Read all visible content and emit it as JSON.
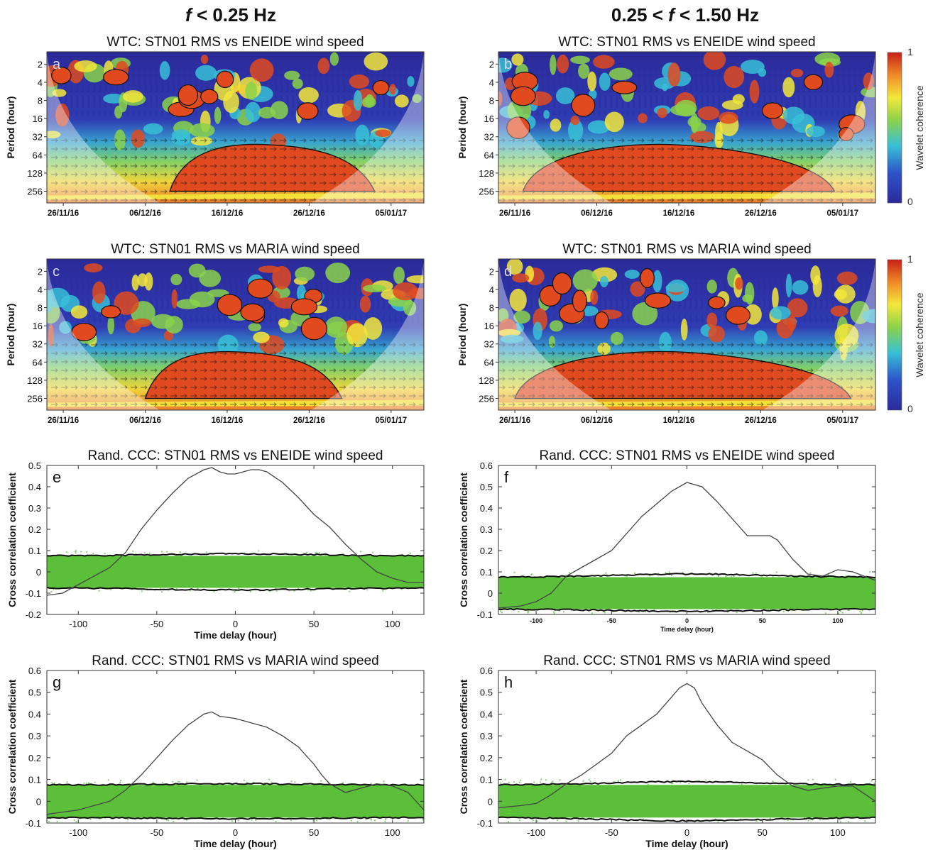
{
  "figure": {
    "column_headers": [
      {
        "italic": "f",
        "rest": " < 0.25 Hz"
      },
      {
        "pre": "0.25 < ",
        "italic": "f",
        "rest": " < 1.50 Hz"
      }
    ]
  },
  "colors": {
    "coherence_low": "#2b2a9a",
    "coherence_mid": "#37c0d6",
    "coherence_green": "#8ad24a",
    "coherence_yellow": "#f3e83a",
    "coherence_high": "#e04a1e",
    "random_band": "#5bbf3a",
    "ccc_line": "#444444"
  },
  "colorbar": {
    "label": "Wavelet coherence",
    "ticks": [
      "1",
      "0"
    ],
    "range": [
      0,
      1
    ]
  },
  "chart_data": [
    {
      "id": "a",
      "label": "a",
      "type": "heatmap",
      "title": "WTC: STN01 RMS vs ENEIDE wind speed",
      "ylabel": "Period (hour)",
      "yticks": [
        "2",
        "4",
        "8",
        "16",
        "32",
        "64",
        "128",
        "256"
      ],
      "yscale": "log2",
      "xticks": [
        "26/11/16",
        "06/12/16",
        "16/12/16",
        "26/12/16",
        "05/01/17"
      ],
      "zlabel": "Wavelet coherence",
      "zrange": [
        0,
        1
      ],
      "high_coherence_regions": [
        {
          "period_range": [
            64,
            256
          ],
          "date_range": [
            "09/12/16",
            "03/01/17"
          ],
          "coherence": 0.9
        }
      ]
    },
    {
      "id": "b",
      "label": "b",
      "type": "heatmap",
      "title": "WTC: STN01 RMS vs ENEIDE wind speed",
      "ylabel": "Period (hour)",
      "yticks": [
        "2",
        "4",
        "8",
        "16",
        "32",
        "64",
        "128",
        "256"
      ],
      "yscale": "log2",
      "xticks": [
        "26/11/16",
        "06/12/16",
        "16/12/16",
        "26/12/16",
        "05/01/17"
      ],
      "zlabel": "Wavelet coherence",
      "zrange": [
        0,
        1
      ],
      "high_coherence_regions": [
        {
          "period_range": [
            64,
            256
          ],
          "date_range": [
            "27/11/16",
            "04/01/17"
          ],
          "coherence": 0.9
        }
      ]
    },
    {
      "id": "c",
      "label": "c",
      "type": "heatmap",
      "title": "WTC: STN01 RMS vs MARIA wind speed",
      "ylabel": "Period (hour)",
      "yticks": [
        "2",
        "4",
        "8",
        "16",
        "32",
        "64",
        "128",
        "256"
      ],
      "yscale": "log2",
      "xticks": [
        "26/11/16",
        "06/12/16",
        "16/12/16",
        "26/12/16",
        "05/01/17"
      ],
      "zlabel": "Wavelet coherence",
      "zrange": [
        0,
        1
      ],
      "high_coherence_regions": [
        {
          "period_range": [
            64,
            256
          ],
          "date_range": [
            "06/12/16",
            "30/12/16"
          ],
          "coherence": 0.9
        }
      ]
    },
    {
      "id": "d",
      "label": "d",
      "type": "heatmap",
      "title": "WTC: STN01 RMS vs MARIA wind speed",
      "ylabel": "Period (hour)",
      "yticks": [
        "2",
        "4",
        "8",
        "16",
        "32",
        "64",
        "128",
        "256"
      ],
      "yscale": "log2",
      "xticks": [
        "26/11/16",
        "06/12/16",
        "16/12/16",
        "26/12/16",
        "05/01/17"
      ],
      "zlabel": "Wavelet coherence",
      "zrange": [
        0,
        1
      ],
      "high_coherence_regions": [
        {
          "period_range": [
            64,
            256
          ],
          "date_range": [
            "26/11/16",
            "06/01/17"
          ],
          "coherence": 0.9
        }
      ]
    },
    {
      "id": "e",
      "label": "e",
      "type": "line",
      "title": "Rand. CCC: STN01 RMS vs ENEIDE wind speed",
      "xlabel": "Time delay (hour)",
      "ylabel": "Cross correlation coefficient",
      "xlim": [
        -120,
        120
      ],
      "ylim": [
        -0.2,
        0.5
      ],
      "xticks": [
        -100,
        -50,
        0,
        50,
        100
      ],
      "yticks": [
        -0.2,
        -0.1,
        0,
        0.1,
        0.2,
        0.3,
        0.4,
        0.5
      ],
      "ccc": {
        "x": [
          -120,
          -110,
          -100,
          -90,
          -80,
          -70,
          -60,
          -50,
          -40,
          -30,
          -20,
          -15,
          -10,
          -5,
          0,
          5,
          10,
          15,
          20,
          30,
          40,
          50,
          60,
          70,
          80,
          90,
          100,
          110,
          120
        ],
        "y": [
          -0.11,
          -0.1,
          -0.06,
          -0.02,
          0.02,
          0.09,
          0.2,
          0.29,
          0.37,
          0.44,
          0.48,
          0.49,
          0.47,
          0.46,
          0.46,
          0.47,
          0.48,
          0.48,
          0.47,
          0.42,
          0.35,
          0.27,
          0.21,
          0.13,
          0.06,
          0.0,
          -0.03,
          -0.05,
          -0.05
        ]
      },
      "random_envelope": {
        "upper": 0.075,
        "lower": -0.075,
        "upper_peak": 0.085,
        "lower_peak": -0.085
      }
    },
    {
      "id": "f",
      "label": "f",
      "type": "line",
      "title": "Rand. CCC: STN01 RMS vs ENEIDE wind speed",
      "xlabel": "Time delay (hour)",
      "ylabel": "Cross correlation coefficient",
      "xlim": [
        -125,
        125
      ],
      "ylim": [
        -0.1,
        0.6
      ],
      "xticks": [
        -100,
        -50,
        0,
        50,
        100
      ],
      "yticks": [
        -0.1,
        0,
        0.1,
        0.2,
        0.3,
        0.4,
        0.5,
        0.6
      ],
      "ccc": {
        "x": [
          -125,
          -110,
          -100,
          -90,
          -80,
          -70,
          -60,
          -50,
          -40,
          -30,
          -20,
          -10,
          0,
          10,
          20,
          30,
          40,
          50,
          55,
          60,
          70,
          80,
          90,
          100,
          110,
          125
        ],
        "y": [
          -0.07,
          -0.06,
          -0.04,
          0.0,
          0.08,
          0.12,
          0.16,
          0.2,
          0.28,
          0.36,
          0.42,
          0.48,
          0.52,
          0.5,
          0.43,
          0.35,
          0.27,
          0.27,
          0.27,
          0.25,
          0.16,
          0.09,
          0.08,
          0.11,
          0.1,
          0.06
        ]
      },
      "random_envelope": {
        "upper": 0.075,
        "lower": -0.075,
        "upper_peak": 0.09,
        "lower_peak": -0.085
      }
    },
    {
      "id": "g",
      "label": "g",
      "type": "line",
      "title": "Rand. CCC: STN01 RMS vs MARIA wind speed",
      "xlabel": "Time delay (hour)",
      "ylabel": "Cross correlation coefficient",
      "xlim": [
        -120,
        120
      ],
      "ylim": [
        -0.1,
        0.6
      ],
      "xticks": [
        -100,
        -50,
        0,
        50,
        100
      ],
      "yticks": [
        -0.1,
        0,
        0.1,
        0.2,
        0.3,
        0.4,
        0.5,
        0.6
      ],
      "ccc": {
        "x": [
          -120,
          -110,
          -100,
          -90,
          -80,
          -70,
          -60,
          -50,
          -40,
          -30,
          -20,
          -15,
          -10,
          0,
          10,
          20,
          30,
          40,
          50,
          55,
          60,
          70,
          80,
          90,
          100,
          110,
          120
        ],
        "y": [
          -0.06,
          -0.05,
          -0.04,
          -0.02,
          0.0,
          0.05,
          0.12,
          0.2,
          0.28,
          0.35,
          0.4,
          0.41,
          0.39,
          0.38,
          0.36,
          0.34,
          0.3,
          0.25,
          0.17,
          0.12,
          0.08,
          0.04,
          0.06,
          0.08,
          0.07,
          0.04,
          -0.04
        ]
      },
      "random_envelope": {
        "upper": 0.075,
        "lower": -0.075,
        "upper_peak": 0.08,
        "lower_peak": -0.08
      }
    },
    {
      "id": "h",
      "label": "h",
      "type": "line",
      "title": "Rand. CCC: STN01 RMS vs MARIA wind speed",
      "xlabel": "Time delay (hour)",
      "ylabel": "Cross correlation coefficient",
      "xlim": [
        -125,
        125
      ],
      "ylim": [
        -0.1,
        0.6
      ],
      "xticks": [
        -100,
        -50,
        0,
        50,
        100
      ],
      "yticks": [
        -0.1,
        0,
        0.1,
        0.2,
        0.3,
        0.4,
        0.5,
        0.6
      ],
      "ccc": {
        "x": [
          -125,
          -110,
          -100,
          -90,
          -80,
          -70,
          -60,
          -50,
          -40,
          -30,
          -20,
          -10,
          -5,
          0,
          5,
          10,
          20,
          30,
          40,
          50,
          60,
          70,
          80,
          90,
          100,
          110,
          125
        ],
        "y": [
          -0.03,
          -0.02,
          -0.01,
          0.03,
          0.08,
          0.12,
          0.17,
          0.22,
          0.3,
          0.35,
          0.4,
          0.48,
          0.52,
          0.54,
          0.52,
          0.45,
          0.35,
          0.27,
          0.23,
          0.19,
          0.12,
          0.07,
          0.05,
          0.06,
          0.07,
          0.07,
          0.0
        ]
      },
      "random_envelope": {
        "upper": 0.075,
        "lower": -0.075,
        "upper_peak": 0.09,
        "lower_peak": -0.09
      }
    }
  ]
}
